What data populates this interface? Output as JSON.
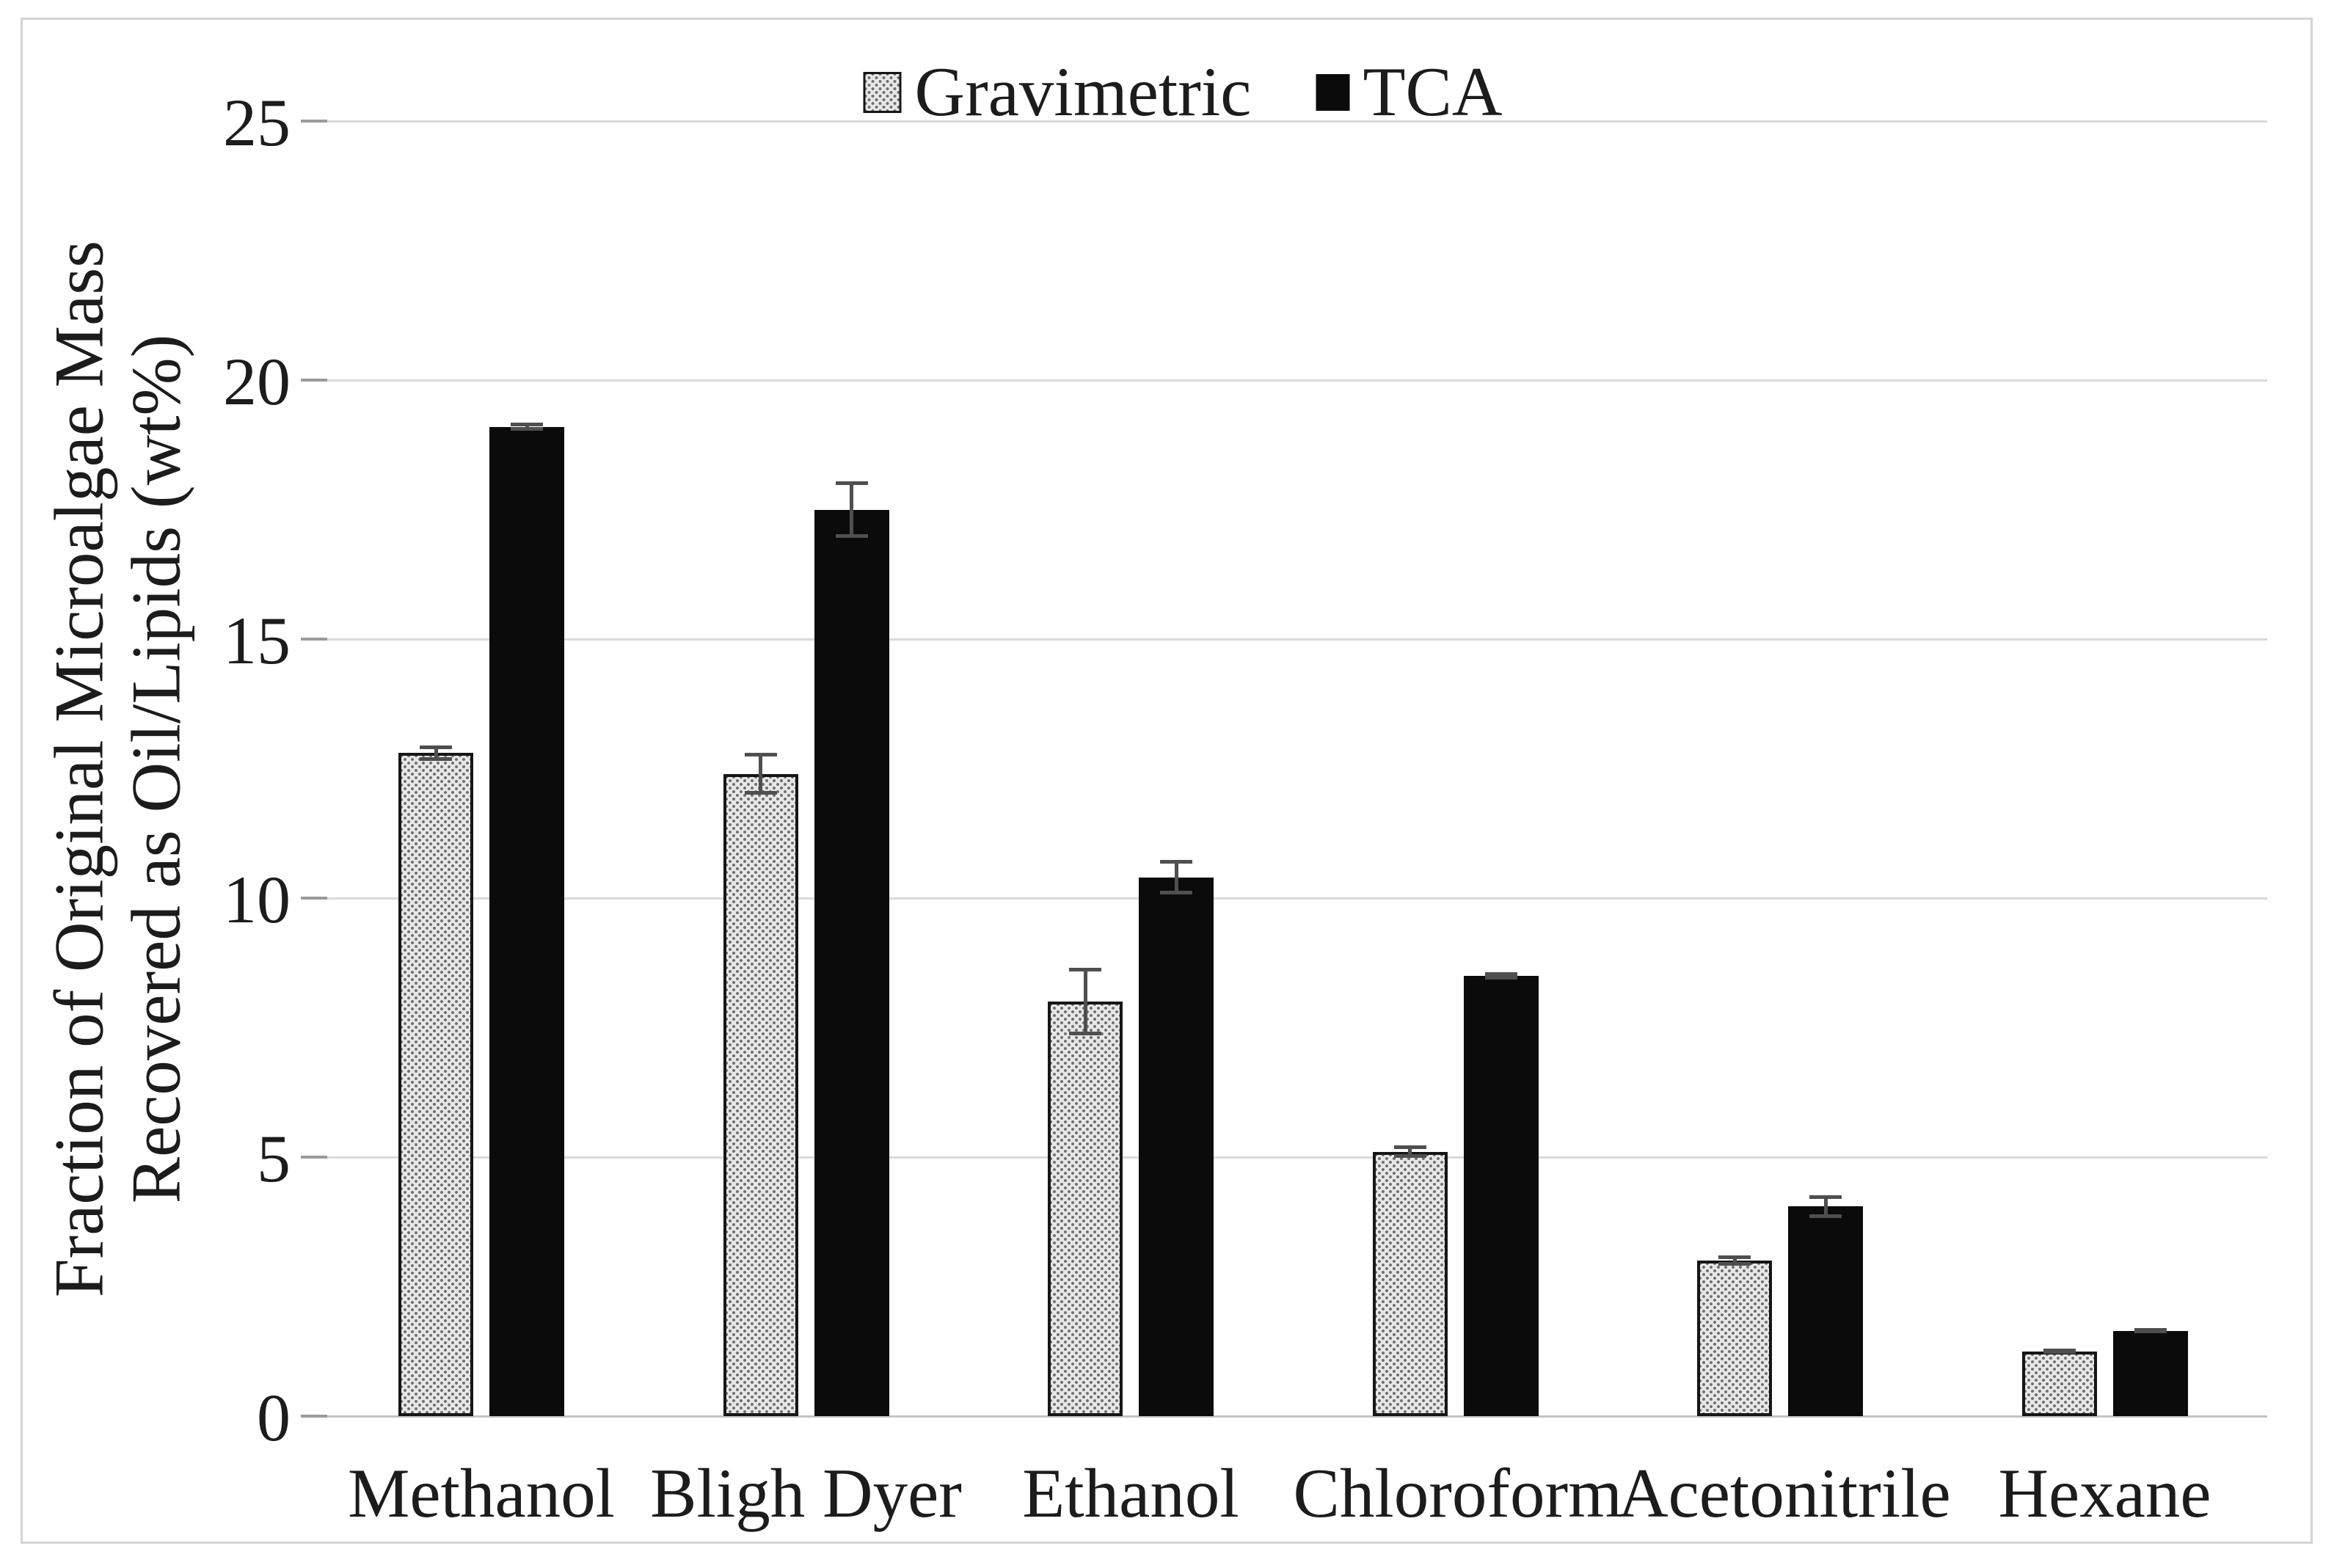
{
  "chart_data": {
    "type": "bar",
    "title": "",
    "categories": [
      "Methanol",
      "Bligh Dyer",
      "Ethanol",
      "Chloroform",
      "Acetonitrile",
      "Hexane"
    ],
    "series": [
      {
        "name": "Gravimetric",
        "style": "pattern",
        "values": [
          12.8,
          12.4,
          8.0,
          5.1,
          3.0,
          1.25
        ],
        "errors": [
          0.15,
          0.4,
          0.65,
          0.12,
          0.1,
          0.05
        ]
      },
      {
        "name": "TCA",
        "style": "solid",
        "values": [
          19.1,
          17.5,
          10.4,
          8.5,
          4.05,
          1.65
        ],
        "errors": [
          0.08,
          0.55,
          0.33,
          0.07,
          0.22,
          0.05
        ]
      }
    ],
    "ylabel_lines": [
      "Fraction of Original Microalgae Mass",
      "Recovered as Oil/Lipids (wt%)"
    ],
    "ytick_labels": [
      "0",
      "5",
      "10",
      "15",
      "20",
      "25"
    ],
    "yticks": [
      0,
      5,
      10,
      15,
      20,
      25
    ],
    "ylim": [
      0,
      25
    ],
    "xlabel": "",
    "grid": true,
    "legend_position": "top-center",
    "error_bars": true
  },
  "colors": {
    "bar_solid": "#0b0b0b",
    "bar_pattern_bg": "#e7e7e7",
    "bar_pattern_dot": "#6f6f6f",
    "bar_border": "#161616",
    "gridline": "#dadada",
    "axis_line": "#c4c4c4",
    "tick": "#9a9a9a",
    "error_bar": "#4f4f4f",
    "frame_border": "#d4d4d4",
    "text": "#1c1c1c",
    "background": "#ffffff"
  }
}
